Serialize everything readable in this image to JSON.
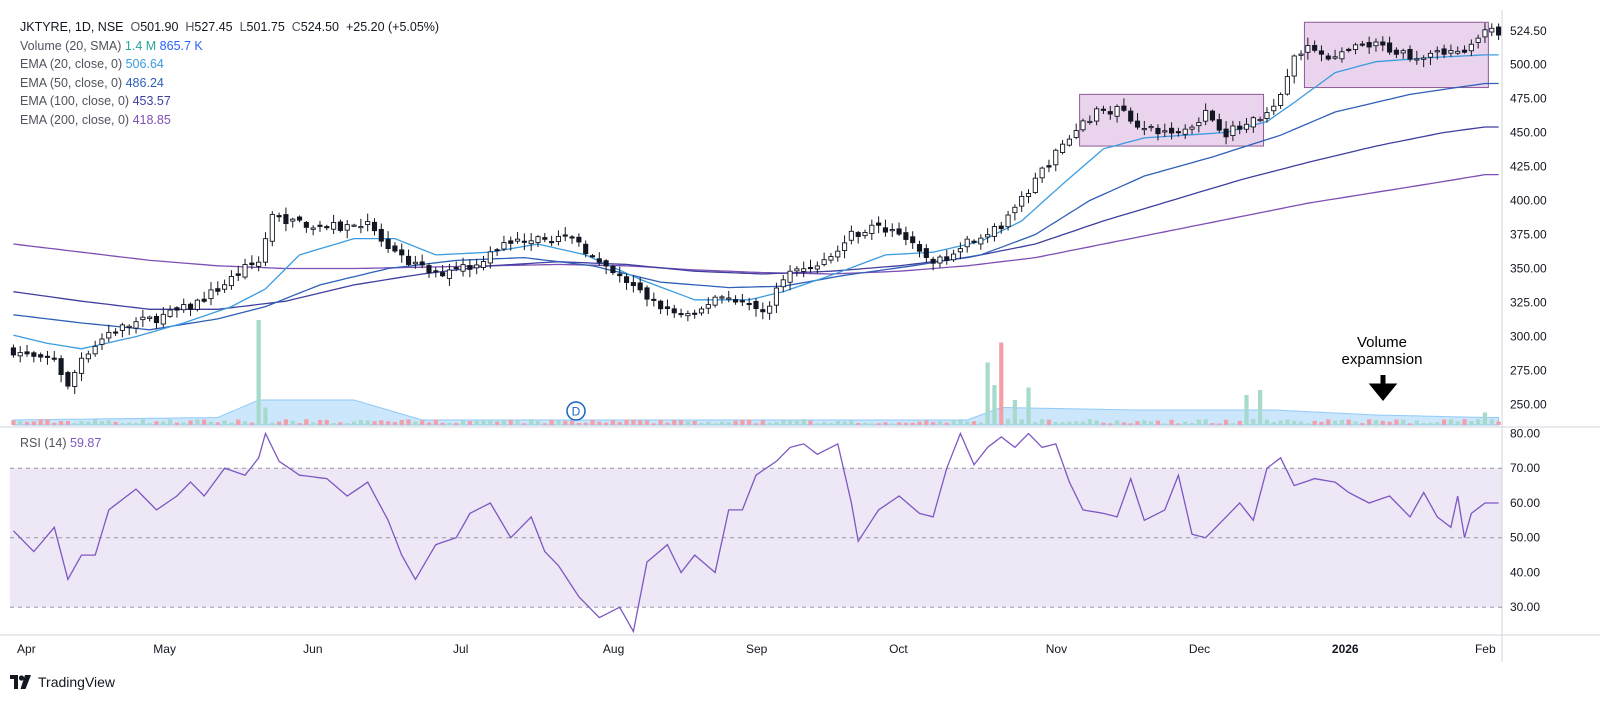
{
  "header": {
    "symbol_line": "JKTYRE, 1D, NSE",
    "open_label": "O",
    "open": "501.90",
    "high_label": "H",
    "high": "527.45",
    "low_label": "L",
    "low": "501.75",
    "close_label": "C",
    "close": "524.50",
    "change": "+25.20 (+5.05%)"
  },
  "indicators": [
    {
      "label": "Volume (20, SMA)",
      "value1": "1.4 M",
      "value2": "865.7 K",
      "color1": "#26a69a",
      "color2": "#2962ff"
    },
    {
      "label": "EMA (20, close, 0)",
      "value1": "506.64",
      "color1": "#3a9be0"
    },
    {
      "label": "EMA (50, close, 0)",
      "value1": "486.24",
      "color1": "#2f5fb8"
    },
    {
      "label": "EMA (100, close, 0)",
      "value1": "453.57",
      "color1": "#3f3f9f"
    },
    {
      "label": "EMA (200, close, 0)",
      "value1": "418.85",
      "color1": "#7e4fb5"
    }
  ],
  "rsi": {
    "label": "RSI (14)",
    "value": "59.87",
    "color": "#7e57c2"
  },
  "annotation": {
    "line1": "Volume",
    "line2": "expamnsion"
  },
  "events_marker": "D",
  "brand": "TradingView",
  "colors": {
    "up": "#ffffff",
    "down": "#131722",
    "ema20": "#3a9be0",
    "ema50": "#2f5fb8",
    "ema100": "#3f3f9f",
    "ema200": "#7e4fb5",
    "rsi": "#7e57c2",
    "box_fill": "#e6cdea",
    "box_stroke": "#8e5a97",
    "rsi_band": "#ede7f6",
    "vol_up": "#a5dacd",
    "vol_down": "#f2a0a8",
    "vol_ma": "#bbdefb"
  },
  "chart_data": {
    "type": "candlestick",
    "title": "",
    "ylim": [
      235,
      540
    ],
    "y_ticks": [
      "524.50",
      "500.00",
      "475.00",
      "450.00",
      "425.00",
      "400.00",
      "375.00",
      "350.00",
      "325.00",
      "300.00",
      "275.00",
      "250.00"
    ],
    "x_labels": [
      "Apr",
      "May",
      "Jun",
      "Jul",
      "Aug",
      "Sep",
      "Oct",
      "Nov",
      "Dec",
      "2026",
      "Feb"
    ],
    "rsi_ticks": [
      "80.00",
      "70.00",
      "60.00",
      "50.00",
      "40.00",
      "30.00"
    ],
    "rsi_lim": [
      22,
      81
    ],
    "rsi_band": [
      30,
      70
    ],
    "rsi_midline": 50,
    "price_anchors": [
      [
        0,
        290
      ],
      [
        4,
        282
      ],
      [
        6,
        285
      ],
      [
        8,
        262
      ],
      [
        10,
        285
      ],
      [
        14,
        303
      ],
      [
        18,
        310
      ],
      [
        22,
        315
      ],
      [
        26,
        322
      ],
      [
        30,
        335
      ],
      [
        34,
        350
      ],
      [
        36,
        355
      ],
      [
        38,
        388
      ],
      [
        40,
        386
      ],
      [
        44,
        382
      ],
      [
        48,
        380
      ],
      [
        52,
        385
      ],
      [
        55,
        362
      ],
      [
        58,
        355
      ],
      [
        62,
        345
      ],
      [
        65,
        352
      ],
      [
        68,
        352
      ],
      [
        70,
        364
      ],
      [
        74,
        370
      ],
      [
        77,
        375
      ],
      [
        80,
        372
      ],
      [
        83,
        370
      ],
      [
        86,
        352
      ],
      [
        90,
        340
      ],
      [
        94,
        325
      ],
      [
        97,
        317
      ],
      [
        100,
        314
      ],
      [
        103,
        330
      ],
      [
        106,
        328
      ],
      [
        109,
        320
      ],
      [
        111,
        322
      ],
      [
        113,
        345
      ],
      [
        117,
        352
      ],
      [
        120,
        358
      ],
      [
        123,
        375
      ],
      [
        126,
        380
      ],
      [
        130,
        378
      ],
      [
        133,
        360
      ],
      [
        136,
        355
      ],
      [
        139,
        368
      ],
      [
        142,
        375
      ],
      [
        145,
        380
      ],
      [
        148,
        400
      ],
      [
        151,
        422
      ],
      [
        154,
        440
      ],
      [
        157,
        458
      ],
      [
        160,
        468
      ],
      [
        163,
        465
      ],
      [
        166,
        452
      ],
      [
        169,
        450
      ],
      [
        172,
        452
      ],
      [
        175,
        465
      ],
      [
        178,
        450
      ],
      [
        181,
        455
      ],
      [
        184,
        465
      ],
      [
        186,
        480
      ],
      [
        188,
        508
      ],
      [
        191,
        512
      ],
      [
        194,
        504
      ],
      [
        197,
        512
      ],
      [
        200,
        514
      ],
      [
        203,
        510
      ],
      [
        206,
        506
      ],
      [
        209,
        512
      ],
      [
        212,
        508
      ],
      [
        214,
        512
      ],
      [
        216,
        524
      ]
    ],
    "ema20": [
      [
        0,
        301
      ],
      [
        5,
        295
      ],
      [
        10,
        291
      ],
      [
        18,
        300
      ],
      [
        25,
        310
      ],
      [
        32,
        322
      ],
      [
        37,
        335
      ],
      [
        42,
        360
      ],
      [
        50,
        372
      ],
      [
        56,
        372
      ],
      [
        62,
        360
      ],
      [
        70,
        362
      ],
      [
        77,
        368
      ],
      [
        84,
        360
      ],
      [
        92,
        342
      ],
      [
        100,
        327
      ],
      [
        108,
        327
      ],
      [
        113,
        333
      ],
      [
        120,
        345
      ],
      [
        128,
        360
      ],
      [
        135,
        362
      ],
      [
        142,
        370
      ],
      [
        148,
        385
      ],
      [
        154,
        412
      ],
      [
        160,
        438
      ],
      [
        166,
        446
      ],
      [
        172,
        448
      ],
      [
        178,
        450
      ],
      [
        184,
        458
      ],
      [
        188,
        472
      ],
      [
        194,
        494
      ],
      [
        200,
        502
      ],
      [
        208,
        505
      ],
      [
        216,
        507
      ]
    ],
    "ema50": [
      [
        0,
        316
      ],
      [
        10,
        310
      ],
      [
        20,
        305
      ],
      [
        30,
        313
      ],
      [
        37,
        322
      ],
      [
        45,
        338
      ],
      [
        55,
        350
      ],
      [
        65,
        356
      ],
      [
        75,
        358
      ],
      [
        85,
        352
      ],
      [
        95,
        340
      ],
      [
        105,
        336
      ],
      [
        113,
        337
      ],
      [
        122,
        345
      ],
      [
        132,
        352
      ],
      [
        142,
        360
      ],
      [
        150,
        375
      ],
      [
        158,
        400
      ],
      [
        166,
        418
      ],
      [
        176,
        432
      ],
      [
        186,
        448
      ],
      [
        194,
        465
      ],
      [
        205,
        478
      ],
      [
        216,
        486
      ]
    ],
    "ema100": [
      [
        0,
        333
      ],
      [
        10,
        326
      ],
      [
        20,
        320
      ],
      [
        30,
        320
      ],
      [
        40,
        326
      ],
      [
        50,
        338
      ],
      [
        60,
        346
      ],
      [
        70,
        352
      ],
      [
        80,
        355
      ],
      [
        90,
        353
      ],
      [
        100,
        348
      ],
      [
        110,
        346
      ],
      [
        120,
        348
      ],
      [
        130,
        352
      ],
      [
        140,
        358
      ],
      [
        150,
        368
      ],
      [
        160,
        385
      ],
      [
        170,
        400
      ],
      [
        180,
        415
      ],
      [
        190,
        428
      ],
      [
        200,
        440
      ],
      [
        210,
        450
      ],
      [
        216,
        454
      ]
    ],
    "ema200": [
      [
        0,
        368
      ],
      [
        10,
        362
      ],
      [
        20,
        356
      ],
      [
        30,
        352
      ],
      [
        40,
        350
      ],
      [
        50,
        350
      ],
      [
        60,
        351
      ],
      [
        70,
        352
      ],
      [
        80,
        353
      ],
      [
        90,
        352
      ],
      [
        100,
        349
      ],
      [
        110,
        347
      ],
      [
        120,
        346
      ],
      [
        130,
        348
      ],
      [
        140,
        352
      ],
      [
        150,
        358
      ],
      [
        160,
        368
      ],
      [
        170,
        378
      ],
      [
        180,
        388
      ],
      [
        190,
        398
      ],
      [
        200,
        406
      ],
      [
        210,
        414
      ],
      [
        216,
        419
      ]
    ],
    "volume_spikes": [
      [
        36,
        0.42
      ],
      [
        37,
        0.07
      ],
      [
        143,
        0.25
      ],
      [
        144,
        0.16
      ],
      [
        145,
        0.33
      ],
      [
        147,
        0.1
      ],
      [
        149,
        0.15
      ],
      [
        181,
        0.12
      ],
      [
        183,
        0.14
      ],
      [
        216,
        0.05
      ]
    ],
    "volume_ma": [
      [
        0,
        0.02
      ],
      [
        30,
        0.03
      ],
      [
        36,
        0.1
      ],
      [
        50,
        0.1
      ],
      [
        55,
        0.06
      ],
      [
        60,
        0.02
      ],
      [
        140,
        0.02
      ],
      [
        145,
        0.07
      ],
      [
        165,
        0.06
      ],
      [
        185,
        0.06
      ],
      [
        200,
        0.04
      ],
      [
        216,
        0.03
      ]
    ],
    "rsi_series": [
      [
        0,
        52
      ],
      [
        3,
        46
      ],
      [
        6,
        53
      ],
      [
        8,
        38
      ],
      [
        10,
        45
      ],
      [
        12,
        45
      ],
      [
        14,
        58
      ],
      [
        18,
        64
      ],
      [
        21,
        58
      ],
      [
        24,
        62
      ],
      [
        26,
        66
      ],
      [
        28,
        62
      ],
      [
        31,
        70
      ],
      [
        34,
        68
      ],
      [
        36,
        73
      ],
      [
        37,
        80
      ],
      [
        39,
        72
      ],
      [
        42,
        68
      ],
      [
        46,
        67
      ],
      [
        49,
        62
      ],
      [
        52,
        66
      ],
      [
        55,
        55
      ],
      [
        57,
        45
      ],
      [
        59,
        38
      ],
      [
        62,
        48
      ],
      [
        65,
        50
      ],
      [
        67,
        57
      ],
      [
        70,
        60
      ],
      [
        73,
        50
      ],
      [
        76,
        56
      ],
      [
        78,
        46
      ],
      [
        80,
        42
      ],
      [
        83,
        33
      ],
      [
        86,
        27
      ],
      [
        89,
        30
      ],
      [
        91,
        23
      ],
      [
        93,
        43
      ],
      [
        96,
        48
      ],
      [
        98,
        40
      ],
      [
        100,
        45
      ],
      [
        103,
        40
      ],
      [
        105,
        58
      ],
      [
        107,
        58
      ],
      [
        109,
        68
      ],
      [
        112,
        72
      ],
      [
        114,
        76
      ],
      [
        116,
        77
      ],
      [
        118,
        74
      ],
      [
        121,
        77
      ],
      [
        123,
        60
      ],
      [
        124,
        49
      ],
      [
        127,
        58
      ],
      [
        130,
        62
      ],
      [
        133,
        57
      ],
      [
        135,
        56
      ],
      [
        137,
        70
      ],
      [
        139,
        80
      ],
      [
        141,
        71
      ],
      [
        143,
        76
      ],
      [
        145,
        79
      ],
      [
        147,
        76
      ],
      [
        149,
        80
      ],
      [
        151,
        76
      ],
      [
        153,
        77
      ],
      [
        155,
        66
      ],
      [
        157,
        58
      ],
      [
        160,
        57
      ],
      [
        162,
        56
      ],
      [
        164,
        67
      ],
      [
        166,
        55
      ],
      [
        169,
        58
      ],
      [
        171,
        68
      ],
      [
        173,
        51
      ],
      [
        175,
        50
      ],
      [
        178,
        56
      ],
      [
        180,
        60
      ],
      [
        182,
        55
      ],
      [
        184,
        70
      ],
      [
        186,
        73
      ],
      [
        188,
        65
      ],
      [
        191,
        67
      ],
      [
        194,
        66
      ],
      [
        196,
        63
      ],
      [
        199,
        60
      ],
      [
        202,
        62
      ],
      [
        205,
        56
      ],
      [
        207,
        63
      ],
      [
        209,
        56
      ],
      [
        211,
        53
      ],
      [
        212,
        62
      ],
      [
        213,
        50
      ],
      [
        214,
        57
      ],
      [
        216,
        60
      ]
    ],
    "boxes": [
      {
        "i0": 157,
        "i1": 184,
        "lo": 440,
        "hi": 478
      },
      {
        "i0": 190,
        "i1": 217,
        "lo": 483,
        "hi": 531
      }
    ]
  }
}
